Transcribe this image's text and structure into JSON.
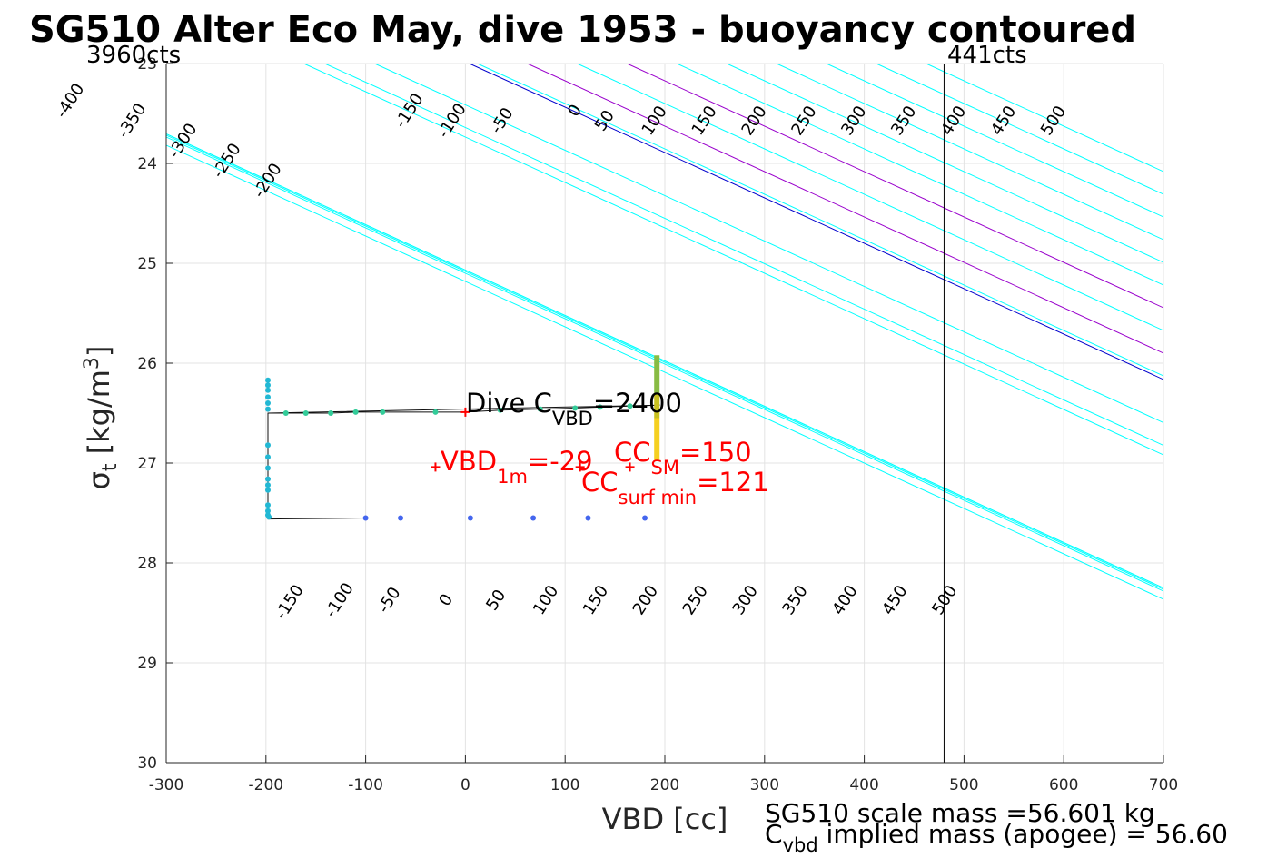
{
  "chart_data": {
    "type": "scatter",
    "title": "SG510 Alter Eco May, dive 1953 - buoyancy contoured",
    "xlabel": "VBD [cc]",
    "ylabel": {
      "main": "σ",
      "sub": "t",
      "unit_pre": " [kg/m",
      "unit_sup": "3",
      "unit_post": "]"
    },
    "xlim": [
      -300,
      700
    ],
    "ylim": [
      23,
      30
    ],
    "y_reversed": true,
    "grid": true,
    "xticks": [
      "-300",
      "-200",
      "-100",
      "0",
      "100",
      "200",
      "300",
      "400",
      "500",
      "600",
      "700"
    ],
    "yticks": [
      "23",
      "24",
      "25",
      "26",
      "27",
      "28",
      "29",
      "30"
    ],
    "contour_slope_cc_per_sigma": 220,
    "contours": [
      {
        "value": "-400",
        "vbd_at_sigma": {
          "sigma": 23.4,
          "vbd": -392
        },
        "color": "#00ffff"
      },
      {
        "value": "-350",
        "vbd_at_sigma": {
          "sigma": 23.6,
          "vbd": -330
        },
        "color": "#00ffff"
      },
      {
        "value": "-300",
        "vbd_at_sigma": {
          "sigma": 23.8,
          "vbd": -279
        },
        "color": "#00ffff"
      },
      {
        "value": "-250",
        "vbd_at_sigma": {
          "sigma": 24.0,
          "vbd": -235
        },
        "color": "#00ffff"
      },
      {
        "value": "-200",
        "vbd_at_sigma": {
          "sigma": 24.2,
          "vbd": -194
        },
        "color": "#00ffff"
      },
      {
        "value": "-150",
        "vbd_at_sigma": {
          "sigma": 23.5,
          "vbd": -52
        },
        "color": "#00ffff"
      },
      {
        "value": "-100",
        "vbd_at_sigma": {
          "sigma": 23.6,
          "vbd": -9
        },
        "color": "#00ffff"
      },
      {
        "value": "-50",
        "vbd_at_sigma": {
          "sigma": 23.6,
          "vbd": 41
        },
        "color": "#00ffff"
      },
      {
        "value": "0",
        "vbd_at_sigma": {
          "sigma": 23.5,
          "vbd": 114
        },
        "color": "#0000cc"
      },
      {
        "value": "50",
        "vbd_at_sigma": {
          "sigma": 23.6,
          "vbd": 144
        },
        "color": "#00ffff"
      },
      {
        "value": "100",
        "vbd_at_sigma": {
          "sigma": 23.6,
          "vbd": 194
        },
        "color": "#9900cc"
      },
      {
        "value": "150",
        "vbd_at_sigma": {
          "sigma": 23.6,
          "vbd": 244
        },
        "color": "#00ffff"
      },
      {
        "value": "200",
        "vbd_at_sigma": {
          "sigma": 23.6,
          "vbd": 294
        },
        "color": "#9900cc"
      },
      {
        "value": "250",
        "vbd_at_sigma": {
          "sigma": 23.6,
          "vbd": 344
        },
        "color": "#00ffff"
      },
      {
        "value": "300",
        "vbd_at_sigma": {
          "sigma": 23.6,
          "vbd": 394
        },
        "color": "#00ffff"
      },
      {
        "value": "350",
        "vbd_at_sigma": {
          "sigma": 23.6,
          "vbd": 444
        },
        "color": "#00ffff"
      },
      {
        "value": "400",
        "vbd_at_sigma": {
          "sigma": 23.6,
          "vbd": 494
        },
        "color": "#00ffff"
      },
      {
        "value": "450",
        "vbd_at_sigma": {
          "sigma": 23.6,
          "vbd": 544
        },
        "color": "#00ffff"
      },
      {
        "value": "500",
        "vbd_at_sigma": {
          "sigma": 23.6,
          "vbd": 594
        },
        "color": "#00ffff"
      }
    ],
    "contour_labels_lower": [
      "-150",
      "-100",
      "-50",
      "0",
      "50",
      "100",
      "150",
      "200",
      "250",
      "300",
      "350",
      "400",
      "450",
      "500"
    ],
    "vertical_line": {
      "vbd": 480,
      "color": "#000000"
    },
    "count_labels": {
      "left": "3960cts",
      "right": "441cts"
    },
    "path": [
      [
        -198,
        26.5
      ],
      [
        -180,
        26.5
      ],
      [
        -160,
        26.5
      ],
      [
        -135,
        26.5
      ],
      [
        -110,
        26.49
      ],
      [
        -83,
        26.49
      ],
      [
        -30,
        26.49
      ],
      [
        0,
        26.49
      ],
      [
        35,
        26.47
      ],
      [
        75,
        26.46
      ],
      [
        110,
        26.45
      ],
      [
        135,
        26.44
      ],
      [
        165,
        26.43
      ],
      [
        195,
        26.42
      ],
      [
        -198,
        26.5
      ],
      [
        -198,
        27.0
      ],
      [
        -198,
        27.56
      ],
      [
        -100,
        27.55
      ],
      [
        -65,
        27.55
      ],
      [
        5,
        27.55
      ],
      [
        68,
        27.55
      ],
      [
        123,
        27.55
      ],
      [
        180,
        27.55
      ]
    ],
    "series": [
      {
        "name": "",
        "color": "#33cc99",
        "points": [
          [
            -180,
            26.5
          ],
          [
            -160,
            26.5
          ],
          [
            -135,
            26.5
          ],
          [
            -110,
            26.49
          ],
          [
            -83,
            26.49
          ],
          [
            -30,
            26.49
          ],
          [
            35,
            26.47
          ],
          [
            75,
            26.46
          ],
          [
            110,
            26.45
          ],
          [
            135,
            26.44
          ],
          [
            165,
            26.43
          ]
        ]
      },
      {
        "name": "",
        "color": "#22b8d4",
        "points": [
          [
            -198,
            26.17
          ],
          [
            -198,
            26.22
          ],
          [
            -198,
            26.27
          ],
          [
            -198,
            26.34
          ],
          [
            -198,
            26.4
          ],
          [
            -198,
            26.46
          ],
          [
            -198,
            26.82
          ],
          [
            -198,
            26.94
          ],
          [
            -198,
            27.05
          ],
          [
            -198,
            27.16
          ],
          [
            -198,
            27.22
          ],
          [
            -198,
            27.27
          ],
          [
            -198,
            27.42
          ],
          [
            -198,
            27.48
          ],
          [
            -198,
            27.52
          ],
          [
            -197,
            27.54
          ]
        ]
      },
      {
        "name": "",
        "color": "#4466ee",
        "points": [
          [
            -100,
            27.55
          ],
          [
            -65,
            27.55
          ],
          [
            5,
            27.55
          ],
          [
            68,
            27.55
          ],
          [
            123,
            27.55
          ],
          [
            180,
            27.55
          ]
        ]
      }
    ],
    "surface_bar": {
      "vbd": 192,
      "segments": [
        {
          "from": 25.92,
          "to": 26.3,
          "color": "#88bb44"
        },
        {
          "from": 26.3,
          "to": 26.55,
          "color": "#c8c020"
        },
        {
          "from": 26.55,
          "to": 26.97,
          "color": "#f5d020"
        }
      ]
    },
    "markers": [
      {
        "vbd": 0,
        "sigma": 26.49,
        "color": "#ff0000"
      },
      {
        "vbd": -30,
        "sigma": 27.04,
        "color": "#ff0000"
      },
      {
        "vbd": 165,
        "sigma": 27.04,
        "color": "#ff0000"
      },
      {
        "vbd": 115,
        "sigma": 27.04,
        "color": "#ff0000"
      }
    ],
    "annotations": {
      "dive_cvbd": {
        "pre": "Dive C",
        "sub": "VBD",
        "post": "=2400",
        "color": "#000000"
      },
      "vbd_1m": {
        "pre": "VBD",
        "sub": "1m",
        "post": "=-29",
        "color": "#ff0000"
      },
      "cc_sm": {
        "pre": "CC",
        "sub": "SM",
        "post": "=150",
        "color": "#ff0000"
      },
      "cc_surf": {
        "pre": "CC",
        "sub": "surf min",
        "post": "=121",
        "color": "#ff0000"
      }
    },
    "footer": {
      "line1": "SG510 scale mass =56.601 kg",
      "line2_pre": "C",
      "line2_sub": "vbd",
      "line2_post": " implied mass (apogee) = 56.60"
    }
  }
}
